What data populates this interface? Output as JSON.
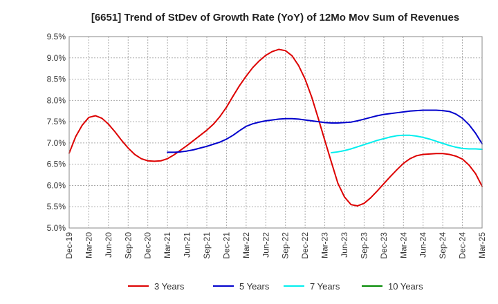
{
  "chart_data": {
    "type": "line",
    "title": "[6651]  Trend of StDev of Growth Rate (YoY) of 12Mo Mov Sum of Revenues",
    "xlabel": "",
    "ylabel": "",
    "ylim": [
      5.0,
      9.5
    ],
    "y_ticks": [
      "5.0%",
      "5.5%",
      "6.0%",
      "6.5%",
      "7.0%",
      "7.5%",
      "8.0%",
      "8.5%",
      "9.0%",
      "9.5%"
    ],
    "x_tick_labels": [
      "Dec-19",
      "Mar-20",
      "Jun-20",
      "Sep-20",
      "Dec-20",
      "Mar-21",
      "Jun-21",
      "Sep-21",
      "Dec-21",
      "Mar-22",
      "Jun-22",
      "Sep-22",
      "Dec-22",
      "Mar-23",
      "Jun-23",
      "Sep-23",
      "Dec-23",
      "Mar-24",
      "Jun-24",
      "Sep-24",
      "Dec-24",
      "Mar-25"
    ],
    "x_range_months": [
      0,
      63
    ],
    "grid": true,
    "legend_position": "bottom",
    "series": [
      {
        "name": "3 Years",
        "color": "#dd0000",
        "start_month": 0,
        "values": [
          6.76,
          7.15,
          7.42,
          7.6,
          7.64,
          7.58,
          7.44,
          7.26,
          7.06,
          6.88,
          6.73,
          6.63,
          6.58,
          6.57,
          6.58,
          6.63,
          6.72,
          6.83,
          6.94,
          7.06,
          7.18,
          7.3,
          7.44,
          7.62,
          7.84,
          8.1,
          8.35,
          8.57,
          8.77,
          8.93,
          9.06,
          9.15,
          9.2,
          9.17,
          9.05,
          8.82,
          8.5,
          8.08,
          7.58,
          7.06,
          6.55,
          6.05,
          5.73,
          5.55,
          5.52,
          5.58,
          5.71,
          5.87,
          6.04,
          6.21,
          6.37,
          6.52,
          6.63,
          6.7,
          6.73,
          6.74,
          6.75,
          6.75,
          6.73,
          6.69,
          6.62,
          6.48,
          6.28,
          5.98
        ]
      },
      {
        "name": "5 Years",
        "color": "#0000cc",
        "start_month": 15,
        "values": [
          6.78,
          6.78,
          6.79,
          6.81,
          6.84,
          6.88,
          6.92,
          6.97,
          7.02,
          7.09,
          7.18,
          7.29,
          7.39,
          7.45,
          7.49,
          7.52,
          7.54,
          7.56,
          7.57,
          7.57,
          7.56,
          7.54,
          7.52,
          7.5,
          7.48,
          7.47,
          7.47,
          7.48,
          7.49,
          7.52,
          7.56,
          7.6,
          7.64,
          7.67,
          7.69,
          7.71,
          7.73,
          7.75,
          7.76,
          7.77,
          7.77,
          7.77,
          7.76,
          7.74,
          7.68,
          7.58,
          7.43,
          7.23,
          6.98
        ]
      },
      {
        "name": "7 Years",
        "color": "#00eeee",
        "start_month": 40,
        "values": [
          6.77,
          6.79,
          6.82,
          6.86,
          6.91,
          6.96,
          7.01,
          7.06,
          7.1,
          7.14,
          7.17,
          7.18,
          7.18,
          7.16,
          7.13,
          7.09,
          7.04,
          6.99,
          6.94,
          6.9,
          6.87,
          6.86,
          6.86,
          6.85
        ]
      },
      {
        "name": "10 Years",
        "color": "#008800",
        "start_month": 0,
        "values": []
      }
    ]
  }
}
